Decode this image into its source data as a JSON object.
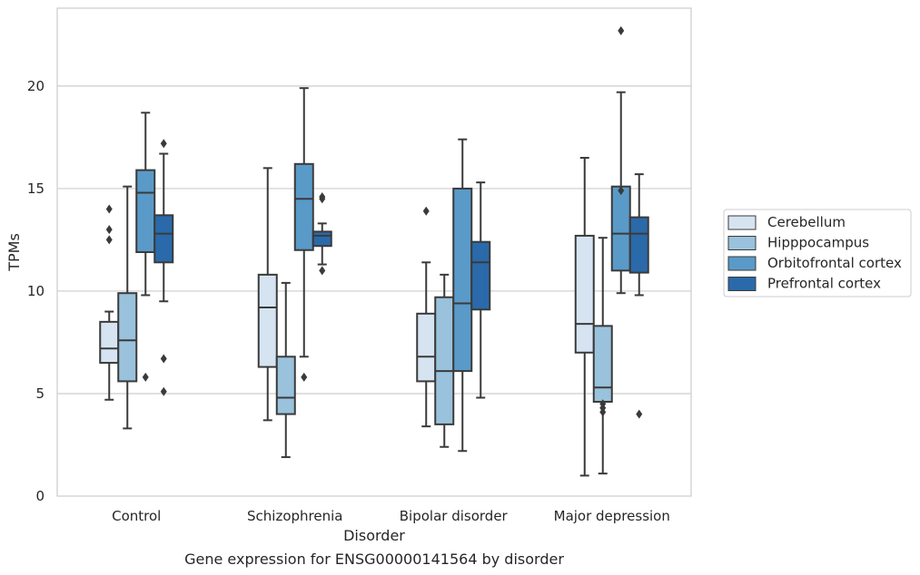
{
  "chart_data": {
    "type": "box",
    "caption": "Gene expression for ENSG00000141564 by disorder",
    "xlabel": "Disorder",
    "ylabel": "TPMs",
    "ylim": [
      0,
      23.8
    ],
    "yticks": [
      0,
      5,
      10,
      15,
      20
    ],
    "grid": "horizontal",
    "legend_position": "right",
    "categories": [
      "Control",
      "Schizophrenia",
      "Bipolar disorder",
      "Major depression"
    ],
    "series": [
      {
        "name": "Cerebellum",
        "color": "#d6e4f2",
        "boxes": [
          {
            "whislo": 4.7,
            "q1": 6.5,
            "med": 7.2,
            "q3": 8.5,
            "whishi": 9.0,
            "fliers": [
              12.5,
              13.0,
              14.0
            ]
          },
          {
            "whislo": 3.7,
            "q1": 6.3,
            "med": 9.2,
            "q3": 10.8,
            "whishi": 16.0,
            "fliers": []
          },
          {
            "whislo": 3.4,
            "q1": 5.6,
            "med": 6.8,
            "q3": 8.9,
            "whishi": 11.4,
            "fliers": [
              13.9
            ]
          },
          {
            "whislo": 1.0,
            "q1": 7.0,
            "med": 8.4,
            "q3": 12.7,
            "whishi": 16.5,
            "fliers": []
          }
        ]
      },
      {
        "name": "Hipppocampus",
        "color": "#9ac2dc",
        "boxes": [
          {
            "whislo": 3.3,
            "q1": 5.6,
            "med": 7.6,
            "q3": 9.9,
            "whishi": 15.1,
            "fliers": []
          },
          {
            "whislo": 1.9,
            "q1": 4.0,
            "med": 4.8,
            "q3": 6.8,
            "whishi": 10.4,
            "fliers": []
          },
          {
            "whislo": 2.4,
            "q1": 3.5,
            "med": 6.1,
            "q3": 9.7,
            "whishi": 10.8,
            "fliers": []
          },
          {
            "whislo": 1.1,
            "q1": 4.6,
            "med": 5.3,
            "q3": 8.3,
            "whishi": 12.6,
            "fliers": [
              4.1,
              4.3,
              4.5
            ]
          }
        ]
      },
      {
        "name": "Orbitofrontal cortex",
        "color": "#5a9ac8",
        "boxes": [
          {
            "whislo": 9.8,
            "q1": 11.9,
            "med": 14.8,
            "q3": 15.9,
            "whishi": 18.7,
            "fliers": [
              5.8
            ]
          },
          {
            "whislo": 6.8,
            "q1": 12.0,
            "med": 14.5,
            "q3": 16.2,
            "whishi": 19.9,
            "fliers": [
              5.8
            ]
          },
          {
            "whislo": 2.2,
            "q1": 6.1,
            "med": 9.4,
            "q3": 15.0,
            "whishi": 17.4,
            "fliers": []
          },
          {
            "whislo": 9.9,
            "q1": 11.0,
            "med": 12.8,
            "q3": 15.1,
            "whishi": 19.7,
            "fliers": [
              14.9,
              22.7
            ]
          }
        ]
      },
      {
        "name": "Prefrontal cortex",
        "color": "#2a6aaa",
        "boxes": [
          {
            "whislo": 9.5,
            "q1": 11.4,
            "med": 12.8,
            "q3": 13.7,
            "whishi": 16.7,
            "fliers": [
              5.1,
              6.7,
              17.2
            ]
          },
          {
            "whislo": 11.3,
            "q1": 12.2,
            "med": 12.7,
            "q3": 12.9,
            "whishi": 13.3,
            "fliers": [
              11.0,
              14.5,
              14.6
            ]
          },
          {
            "whislo": 4.8,
            "q1": 9.1,
            "med": 11.4,
            "q3": 12.4,
            "whishi": 15.3,
            "fliers": []
          },
          {
            "whislo": 9.8,
            "q1": 10.9,
            "med": 12.8,
            "q3": 13.6,
            "whishi": 15.7,
            "fliers": [
              4.0
            ]
          }
        ]
      }
    ]
  }
}
